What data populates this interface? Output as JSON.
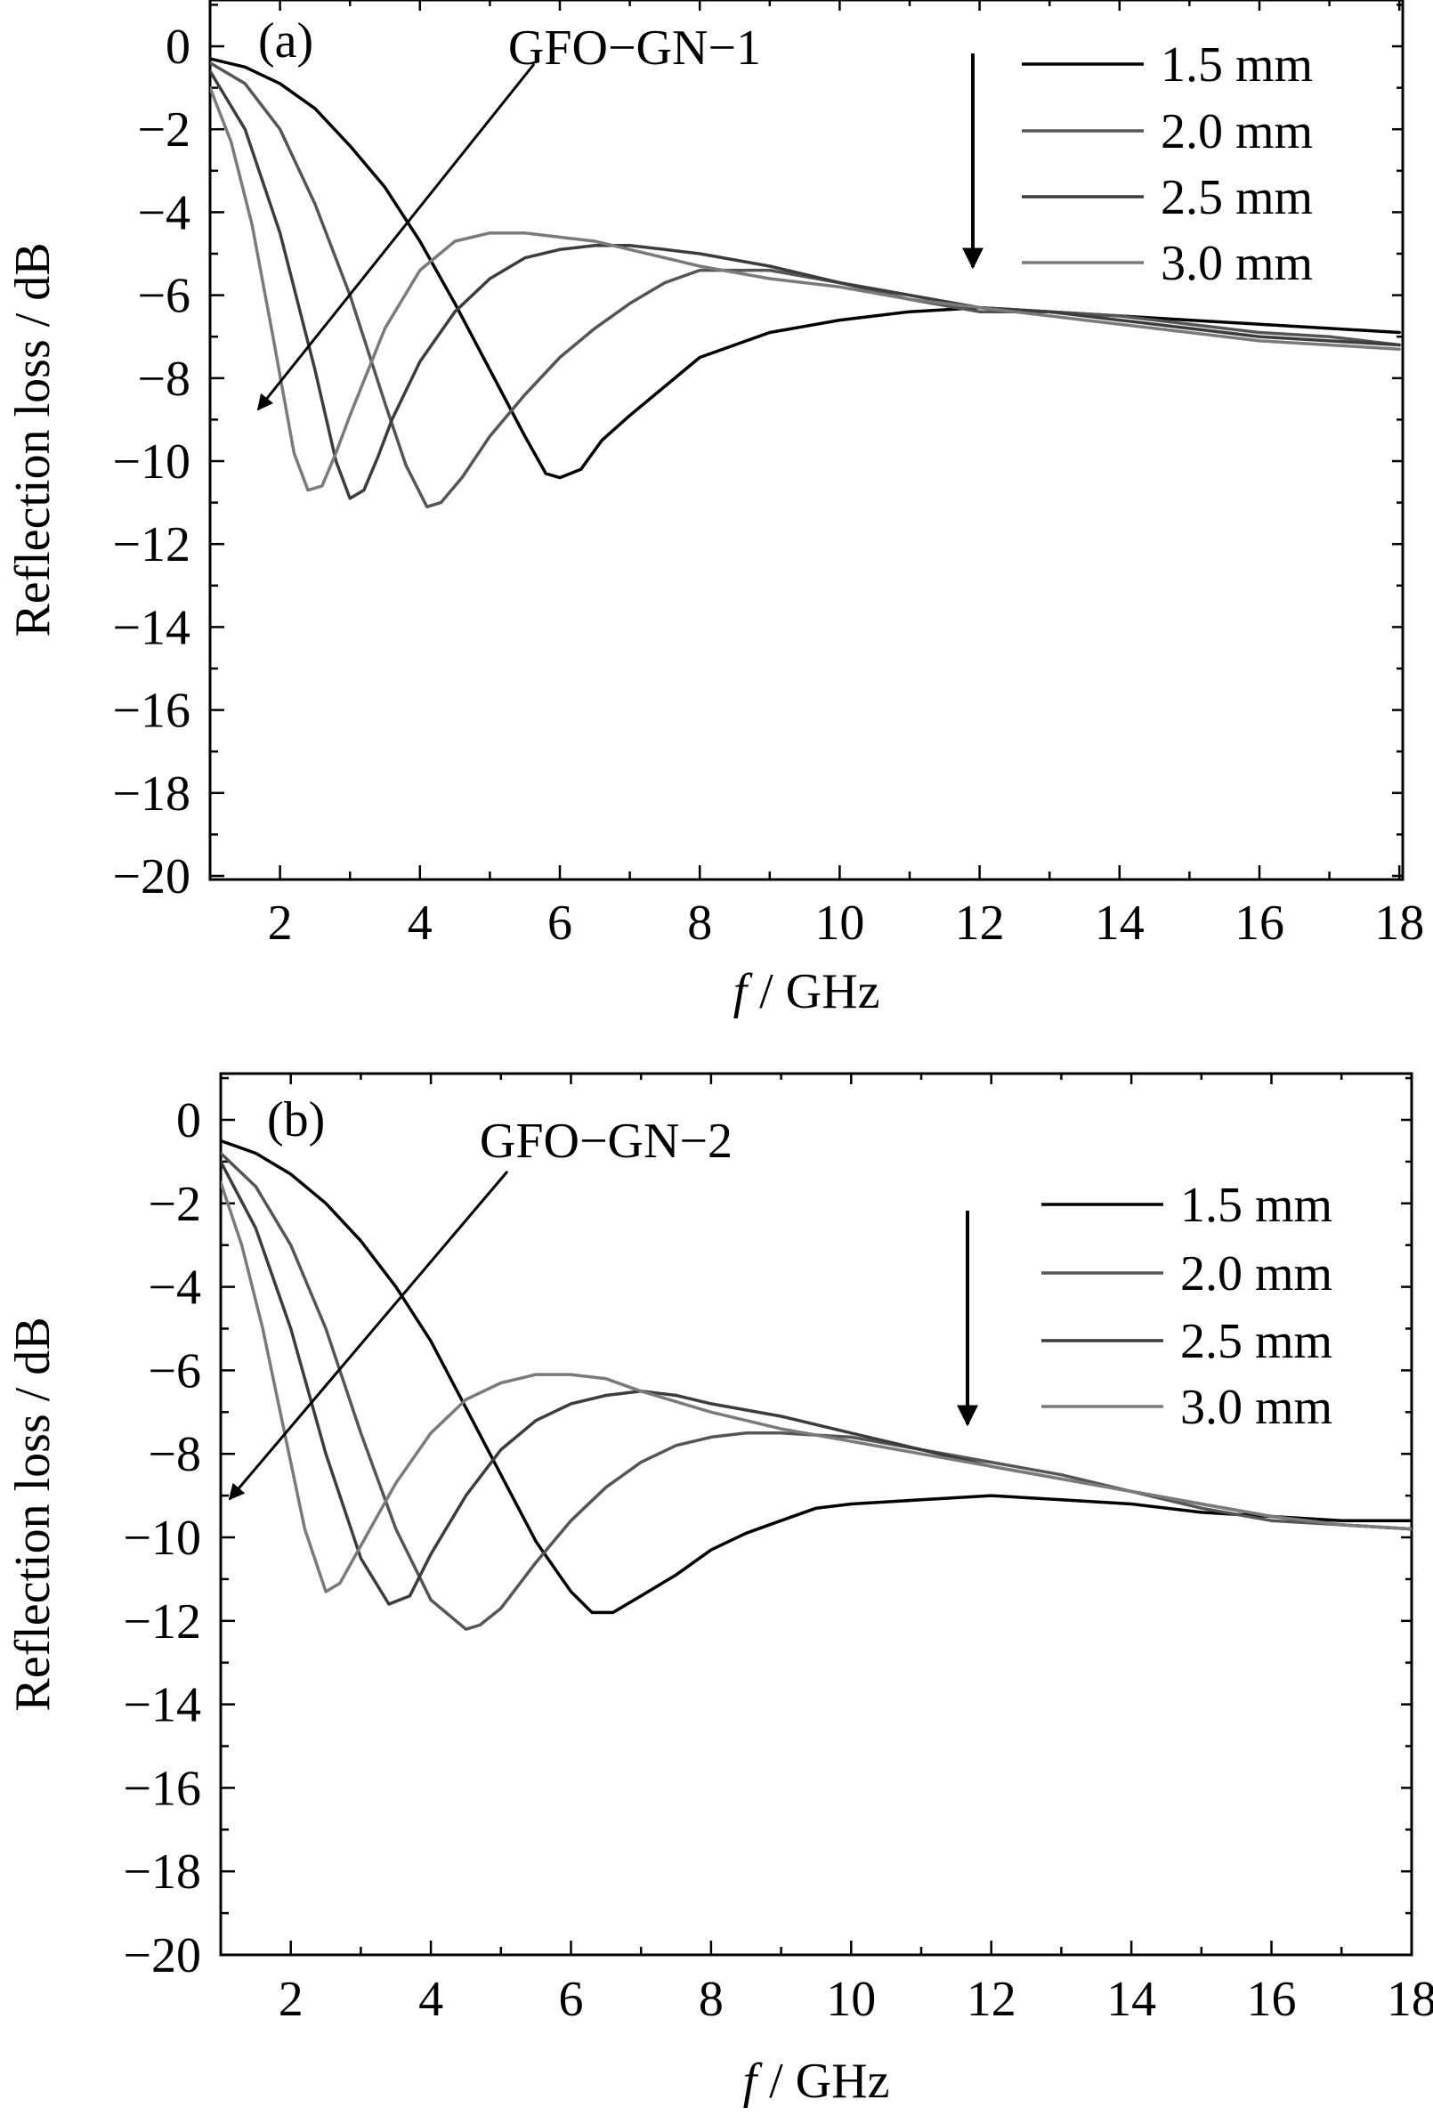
{
  "chart_data": [
    {
      "type": "line",
      "panel_label": "(a)",
      "annotation": "GFO−GN−1",
      "xlabel_italic": "f",
      "xlabel_rest": " / GHz",
      "ylabel": "Reflection loss / dB",
      "xlim": [
        1,
        18
      ],
      "ylim": [
        -20,
        1
      ],
      "xticks": [
        2,
        4,
        6,
        8,
        10,
        12,
        14,
        16,
        18
      ],
      "xtick_labels": [
        "2",
        "4",
        "6",
        "8",
        "10",
        "12",
        "14",
        "16",
        "18"
      ],
      "yticks": [
        0,
        -2,
        -4,
        -6,
        -8,
        -10,
        -12,
        -14,
        -16,
        -18,
        -20
      ],
      "ytick_labels": [
        "0",
        "−2",
        "−4",
        "−6",
        "−8",
        "−10",
        "−12",
        "−14",
        "−16",
        "−18",
        "−20"
      ],
      "legend_position": "top-right",
      "series": [
        {
          "name": "1.5 mm",
          "color": "#000000",
          "x": [
            1.0,
            1.5,
            2.0,
            2.5,
            3.0,
            3.5,
            4.0,
            4.5,
            5.0,
            5.5,
            5.8,
            6.0,
            6.3,
            6.6,
            7.0,
            7.5,
            8.0,
            8.5,
            9.0,
            10.0,
            11.0,
            12.0,
            13.0,
            14.0,
            15.0,
            16.0,
            17.0,
            18.0
          ],
          "y": [
            -0.3,
            -0.5,
            -0.9,
            -1.5,
            -2.4,
            -3.4,
            -4.7,
            -6.2,
            -7.8,
            -9.4,
            -10.3,
            -10.4,
            -10.2,
            -9.5,
            -8.9,
            -8.2,
            -7.5,
            -7.2,
            -6.9,
            -6.6,
            -6.4,
            -6.3,
            -6.4,
            -6.5,
            -6.6,
            -6.7,
            -6.8,
            -6.9
          ]
        },
        {
          "name": "2.0 mm",
          "color": "#555555",
          "x": [
            1.0,
            1.5,
            2.0,
            2.5,
            3.0,
            3.5,
            3.8,
            4.1,
            4.3,
            4.6,
            5.0,
            5.5,
            6.0,
            6.5,
            7.0,
            7.5,
            8.0,
            9.0,
            10.0,
            11.0,
            12.0,
            13.0,
            14.0,
            15.0,
            16.0,
            17.0,
            18.0
          ],
          "y": [
            -0.4,
            -0.9,
            -2.0,
            -3.8,
            -6.0,
            -8.6,
            -10.1,
            -11.1,
            -11.0,
            -10.4,
            -9.4,
            -8.4,
            -7.5,
            -6.8,
            -6.2,
            -5.7,
            -5.4,
            -5.4,
            -5.7,
            -6.1,
            -6.4,
            -6.4,
            -6.5,
            -6.7,
            -6.9,
            -7.0,
            -7.2
          ]
        },
        {
          "name": "2.5 mm",
          "color": "#3c3c3c",
          "x": [
            1.0,
            1.5,
            2.0,
            2.5,
            2.8,
            3.0,
            3.2,
            3.4,
            3.6,
            4.0,
            4.5,
            5.0,
            5.5,
            6.0,
            6.5,
            7.0,
            7.5,
            8.0,
            9.0,
            10.0,
            11.0,
            12.0,
            13.0,
            14.0,
            15.0,
            16.0,
            17.0,
            18.0
          ],
          "y": [
            -0.6,
            -2.0,
            -4.5,
            -7.8,
            -10.0,
            -10.9,
            -10.7,
            -9.9,
            -9.0,
            -7.6,
            -6.4,
            -5.6,
            -5.1,
            -4.9,
            -4.8,
            -4.8,
            -4.9,
            -5.0,
            -5.3,
            -5.7,
            -6.0,
            -6.3,
            -6.4,
            -6.6,
            -6.8,
            -7.0,
            -7.1,
            -7.2
          ]
        },
        {
          "name": "3.0 mm",
          "color": "#7a7a7a",
          "x": [
            1.0,
            1.3,
            1.6,
            1.9,
            2.2,
            2.4,
            2.6,
            2.8,
            3.0,
            3.5,
            4.0,
            4.5,
            5.0,
            5.5,
            6.0,
            6.5,
            7.0,
            8.0,
            9.0,
            10.0,
            11.0,
            12.0,
            13.0,
            14.0,
            15.0,
            16.0,
            17.0,
            18.0
          ],
          "y": [
            -1.0,
            -2.3,
            -4.3,
            -7.0,
            -9.8,
            -10.7,
            -10.6,
            -9.8,
            -8.9,
            -6.8,
            -5.4,
            -4.7,
            -4.5,
            -4.5,
            -4.6,
            -4.7,
            -4.9,
            -5.3,
            -5.6,
            -5.8,
            -6.1,
            -6.3,
            -6.5,
            -6.7,
            -6.9,
            -7.1,
            -7.2,
            -7.3
          ]
        }
      ]
    },
    {
      "type": "line",
      "panel_label": "(b)",
      "annotation": "GFO−GN−2",
      "xlabel_italic": "f",
      "xlabel_rest": " / GHz",
      "ylabel": "Reflection loss / dB",
      "xlim": [
        1,
        18
      ],
      "ylim": [
        -20,
        1
      ],
      "xticks": [
        2,
        4,
        6,
        8,
        10,
        12,
        14,
        16,
        18
      ],
      "xtick_labels": [
        "2",
        "4",
        "6",
        "8",
        "10",
        "12",
        "14",
        "16",
        "18"
      ],
      "yticks": [
        0,
        -2,
        -4,
        -6,
        -8,
        -10,
        -12,
        -14,
        -16,
        -18,
        -20
      ],
      "ytick_labels": [
        "0",
        "−2",
        "−4",
        "−6",
        "−8",
        "−10",
        "−12",
        "−14",
        "−16",
        "−18",
        "−20"
      ],
      "legend_position": "top-right",
      "series": [
        {
          "name": "1.5 mm",
          "color": "#000000",
          "x": [
            1.0,
            1.5,
            2.0,
            2.5,
            3.0,
            3.5,
            4.0,
            4.5,
            5.0,
            5.5,
            6.0,
            6.3,
            6.6,
            7.0,
            7.5,
            8.0,
            8.5,
            9.0,
            9.5,
            10.0,
            11.0,
            12.0,
            13.0,
            14.0,
            15.0,
            16.0,
            17.0,
            18.0
          ],
          "y": [
            -0.5,
            -0.8,
            -1.3,
            -2.0,
            -2.9,
            -4.0,
            -5.3,
            -6.9,
            -8.5,
            -10.1,
            -11.3,
            -11.8,
            -11.8,
            -11.4,
            -10.9,
            -10.3,
            -9.9,
            -9.6,
            -9.3,
            -9.2,
            -9.1,
            -9.0,
            -9.1,
            -9.2,
            -9.4,
            -9.5,
            -9.6,
            -9.6
          ]
        },
        {
          "name": "2.0 mm",
          "color": "#555555",
          "x": [
            1.0,
            1.5,
            2.0,
            2.5,
            3.0,
            3.5,
            4.0,
            4.5,
            4.7,
            5.0,
            5.5,
            6.0,
            6.5,
            7.0,
            7.5,
            8.0,
            8.5,
            9.0,
            10.0,
            11.0,
            12.0,
            13.0,
            14.0,
            15.0,
            16.0,
            17.0,
            18.0
          ],
          "y": [
            -0.8,
            -1.6,
            -3.0,
            -5.0,
            -7.5,
            -9.8,
            -11.5,
            -12.2,
            -12.1,
            -11.7,
            -10.6,
            -9.6,
            -8.8,
            -8.2,
            -7.8,
            -7.6,
            -7.5,
            -7.5,
            -7.6,
            -7.9,
            -8.2,
            -8.5,
            -8.9,
            -9.3,
            -9.6,
            -9.7,
            -9.8
          ]
        },
        {
          "name": "2.5 mm",
          "color": "#3c3c3c",
          "x": [
            1.0,
            1.5,
            2.0,
            2.5,
            3.0,
            3.4,
            3.7,
            4.0,
            4.5,
            5.0,
            5.5,
            6.0,
            6.5,
            7.0,
            7.5,
            8.0,
            9.0,
            10.0,
            11.0,
            12.0,
            13.0,
            14.0,
            15.0,
            16.0,
            17.0,
            18.0
          ],
          "y": [
            -1.0,
            -2.6,
            -5.0,
            -8.0,
            -10.5,
            -11.6,
            -11.4,
            -10.4,
            -9.0,
            -7.9,
            -7.2,
            -6.8,
            -6.6,
            -6.5,
            -6.6,
            -6.8,
            -7.1,
            -7.5,
            -7.9,
            -8.3,
            -8.6,
            -8.9,
            -9.2,
            -9.5,
            -9.7,
            -9.8
          ]
        },
        {
          "name": "3.0 mm",
          "color": "#7a7a7a",
          "x": [
            1.0,
            1.3,
            1.6,
            1.9,
            2.2,
            2.5,
            2.7,
            2.9,
            3.2,
            3.5,
            4.0,
            4.5,
            5.0,
            5.5,
            6.0,
            6.5,
            7.0,
            8.0,
            9.0,
            10.0,
            11.0,
            12.0,
            13.0,
            14.0,
            15.0,
            16.0,
            17.0,
            18.0
          ],
          "y": [
            -1.5,
            -3.0,
            -5.0,
            -7.4,
            -9.8,
            -11.3,
            -11.1,
            -10.5,
            -9.6,
            -8.7,
            -7.5,
            -6.7,
            -6.3,
            -6.1,
            -6.1,
            -6.2,
            -6.5,
            -7.0,
            -7.4,
            -7.7,
            -8.0,
            -8.3,
            -8.6,
            -8.9,
            -9.2,
            -9.5,
            -9.7,
            -9.8
          ]
        }
      ]
    }
  ]
}
